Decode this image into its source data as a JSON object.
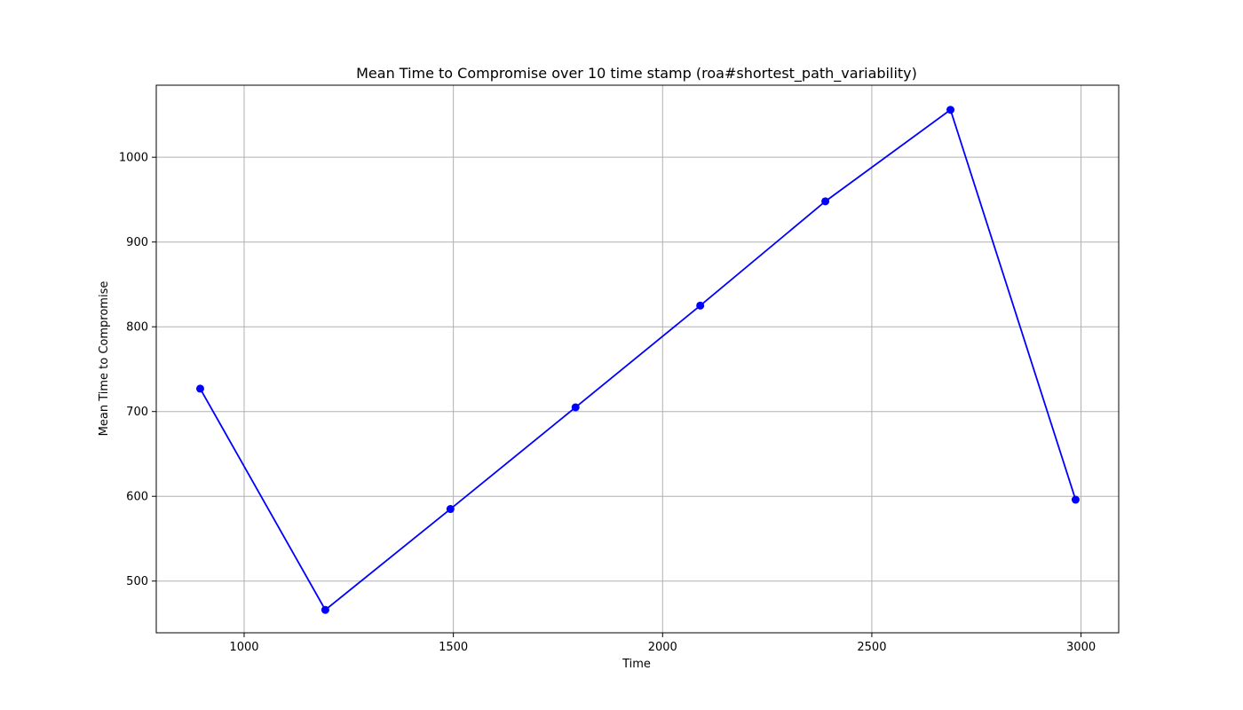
{
  "colors": {
    "series": "#0000ff",
    "grid": "#b0b0b0",
    "axis": "#000000"
  },
  "chart_data": {
    "type": "line",
    "title": "Mean Time to Compromise over 10 time stamp (roa#shortest_path_variability)",
    "xlabel": "Time",
    "ylabel": "Mean Time to Compromise",
    "xlim": [
      790,
      3090
    ],
    "ylim": [
      439,
      1085
    ],
    "xticks": [
      1000,
      1500,
      2000,
      2500,
      3000
    ],
    "yticks": [
      500,
      600,
      700,
      800,
      900,
      1000
    ],
    "grid": true,
    "marker": "circle",
    "series": [
      {
        "x": [
          895,
          1194,
          1493,
          1792,
          2090,
          2389,
          2688,
          2987
        ],
        "y": [
          727,
          466,
          585,
          705,
          825,
          948,
          1056,
          596
        ]
      }
    ]
  }
}
